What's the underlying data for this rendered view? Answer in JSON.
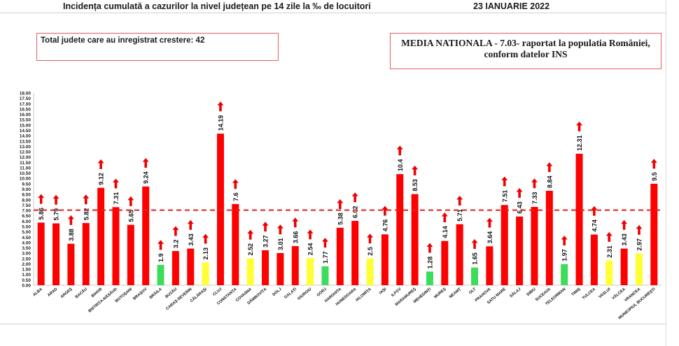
{
  "header": {
    "title": "Incidența cumulată a cazurilor la nivel județean pe 14 zile la ‰ de locuitori",
    "date": "23 IANUARIE 2022"
  },
  "info": {
    "counties_growth": "Total judete care au inregistrat crestere: 42",
    "national_line1": "MEDIA NATIONALA - 7.03-  raportat la populatia României,",
    "national_line2": "conform datelor INS"
  },
  "chart_data": {
    "type": "bar",
    "categories": [
      "ALBA",
      "ARAD",
      "ARGEȘ",
      "BACĂU",
      "BIHOR",
      "BISTRIȚA-NĂSĂUD",
      "BOTOȘANI",
      "BRAȘOV",
      "BRĂILA",
      "BUZĂU",
      "CARAȘ-SEVERIN",
      "CĂLĂRAȘI",
      "CLUJ",
      "CONSTANȚA",
      "COVASNA",
      "DÂMBOVIȚA",
      "DOLJ",
      "GALAȚI",
      "GIURGIU",
      "GORJ",
      "HARGHITA",
      "HUNEDOARA",
      "IALOMIȚA",
      "IAȘI",
      "ILFOV",
      "MARAMUREȘ",
      "MEHEDINȚI",
      "MUREȘ",
      "NEAMȚ",
      "OLT",
      "PRAHOVA",
      "SATU MARE",
      "SĂLAJ",
      "SIBIU",
      "SUCEAVA",
      "TELEORMAN",
      "TIMIȘ",
      "TULCEA",
      "VASLUI",
      "VÂLCEA",
      "VRANCEA",
      "MUNICIPIUL BUCUREȘTI"
    ],
    "values": [
      5.86,
      5.79,
      3.88,
      5.82,
      9.12,
      7.31,
      5.65,
      9.24,
      1.9,
      3.2,
      3.43,
      2.13,
      14.19,
      7.6,
      2.52,
      3.27,
      3.01,
      3.66,
      2.54,
      1.77,
      5.38,
      6.02,
      2.5,
      4.76,
      10.4,
      8.53,
      1.28,
      4.14,
      5.71,
      1.65,
      3.64,
      7.51,
      6.43,
      7.33,
      8.84,
      1.97,
      12.31,
      4.74,
      2.31,
      3.43,
      2.97,
      9.5
    ],
    "value_labels": [
      "5.86",
      "5.79",
      "3.88",
      "5.82",
      "9.12",
      "7.31",
      "5.65",
      "9.24",
      "1.9",
      "3.2",
      "3.43",
      "2.13",
      "14.19",
      "7.6",
      "2.52",
      "3.27",
      "3.01",
      "3.66",
      "2.54",
      "1.77",
      "5.38",
      "6.02",
      "2.5",
      "4.76",
      "10.4",
      "8.53",
      "1.28",
      "4.14",
      "5.71",
      "1.65",
      "3.64",
      "7.51",
      "6.43",
      "7.33",
      "8.84",
      "1.97",
      "12.31",
      "4.74",
      "2.31",
      "3.43",
      "2.97",
      "9.5"
    ],
    "colors": [
      "red",
      "red",
      "red",
      "red",
      "red",
      "red",
      "red",
      "red",
      "green",
      "red",
      "red",
      "yellow",
      "red",
      "red",
      "yellow",
      "red",
      "red",
      "red",
      "yellow",
      "green",
      "red",
      "red",
      "yellow",
      "red",
      "red",
      "red",
      "green",
      "red",
      "red",
      "green",
      "red",
      "red",
      "red",
      "red",
      "red",
      "green",
      "red",
      "red",
      "yellow",
      "red",
      "yellow",
      "red"
    ],
    "trend": "up",
    "reference_line": 7.03,
    "ylim": [
      0,
      18
    ],
    "y_ticks": [
      "0.00",
      "0.50",
      "1.00",
      "1.50",
      "2.00",
      "2.50",
      "3.00",
      "3.50",
      "4.00",
      "4.50",
      "5.00",
      "5.50",
      "6.00",
      "6.50",
      "7.00",
      "7.50",
      "8.00",
      "8.50",
      "9.00",
      "9.50",
      "10.00",
      "10.50",
      "11.00",
      "11.50",
      "12.00",
      "12.50",
      "13.00",
      "13.50",
      "14.00",
      "14.50",
      "15.00",
      "15.50",
      "16.00",
      "16.50",
      "17.00",
      "17.50",
      "18.00"
    ],
    "palette": {
      "red": "#ff0000",
      "green": "#3ddc5c",
      "yellow": "#ffff33",
      "reference": "#dd1f1f",
      "arrow": "#ee0000"
    },
    "title": "",
    "xlabel": "",
    "ylabel": ""
  }
}
